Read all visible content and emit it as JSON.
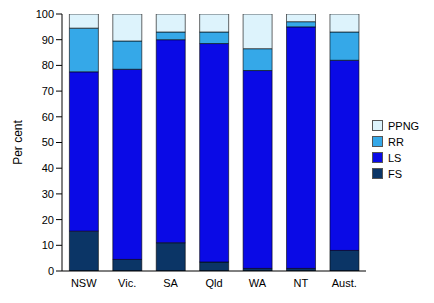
{
  "chart_data": {
    "type": "bar",
    "stacked": true,
    "y_label": "Per cent",
    "categories": [
      "NSW",
      "Vic.",
      "SA",
      "Qld",
      "WA",
      "NT",
      "Aust."
    ],
    "series": [
      {
        "name": "FS",
        "color": "#0b3566",
        "values": [
          15.5,
          4.5,
          11,
          3.5,
          1,
          1,
          8
        ]
      },
      {
        "name": "LS",
        "color": "#0a0ae6",
        "values": [
          62,
          74,
          79,
          85,
          77,
          94,
          74
        ]
      },
      {
        "name": "RR",
        "color": "#35a8e8",
        "values": [
          17,
          11,
          3,
          4.5,
          8.5,
          2,
          11
        ]
      },
      {
        "name": "PPNG",
        "color": "#ddf3fc",
        "values": [
          5.5,
          10.5,
          7,
          7,
          13.5,
          3,
          7
        ]
      }
    ],
    "ylim": [
      0,
      100
    ],
    "yticks": [
      0,
      10,
      20,
      30,
      40,
      50,
      60,
      70,
      80,
      90,
      100
    ],
    "grid": false,
    "legend": "right"
  }
}
